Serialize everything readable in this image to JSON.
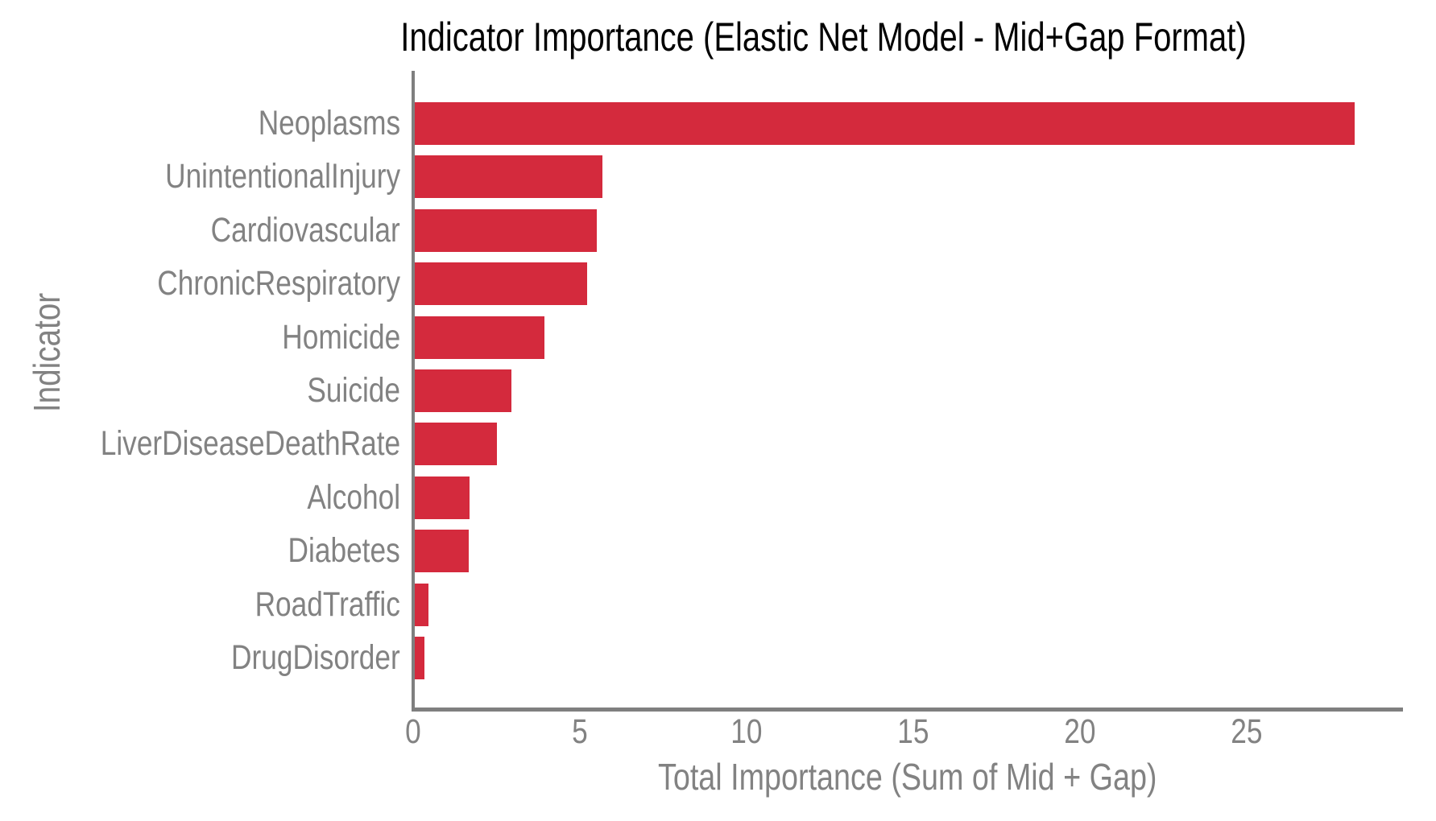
{
  "chart_data": {
    "type": "bar",
    "orientation": "horizontal",
    "title": "Indicator Importance (Elastic Net Model - Mid+Gap Format)",
    "xlabel": "Total Importance (Sum of Mid + Gap)",
    "ylabel": "Indicator",
    "categories": [
      "Neoplasms",
      "UnintentionalInjury",
      "Cardiovascular",
      "ChronicRespiratory",
      "Homicide",
      "Suicide",
      "LiverDiseaseDeathRate",
      "Alcohol",
      "Diabetes",
      "RoadTraffic",
      "DrugDisorder"
    ],
    "values": [
      28.26,
      5.67,
      5.52,
      5.22,
      3.93,
      2.95,
      2.52,
      1.69,
      1.67,
      0.46,
      0.35
    ],
    "xticks": [
      0,
      5,
      10,
      15,
      20,
      25
    ],
    "xlim": [
      0,
      29.7
    ],
    "grid": false,
    "legend": false,
    "colors": {
      "bar": "#d42a3d",
      "axis_line": "#7f7f7f",
      "tick_label": "#828282",
      "axis_title": "#828282",
      "title": "#000000",
      "background": "#ffffff"
    }
  }
}
